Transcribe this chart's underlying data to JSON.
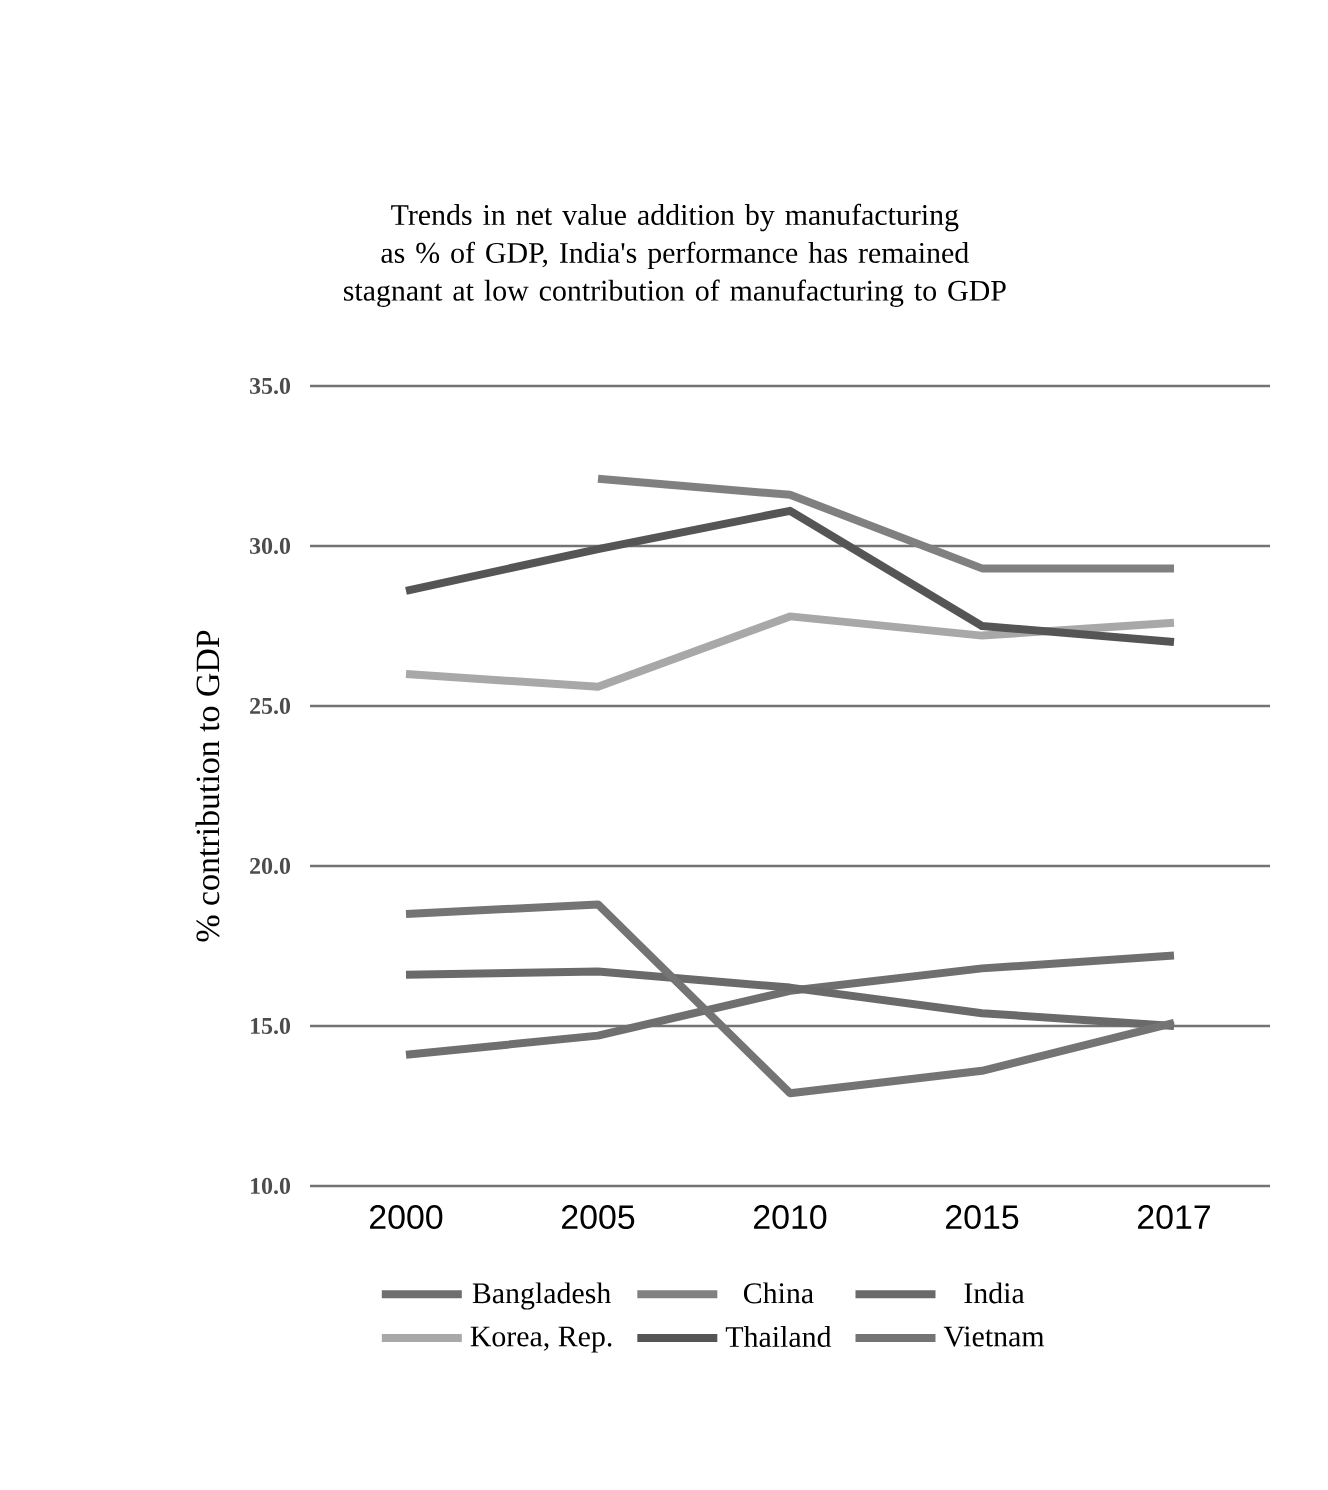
{
  "chart_data": {
    "type": "line",
    "title": "Trends in net value addition by manufacturing as % of GDP,  India's performance has remained stagnant at low contribution of manufacturing to GDP",
    "ylabel": "% contribution to GDP",
    "categories": [
      "2000",
      "2005",
      "2010",
      "2015",
      "2017"
    ],
    "ylim": [
      10,
      35
    ],
    "yticks": [
      {
        "value": 10,
        "label": "10.0"
      },
      {
        "value": 15,
        "label": "15.0"
      },
      {
        "value": 20,
        "label": "20.0"
      },
      {
        "value": 25,
        "label": "25.0"
      },
      {
        "value": 30,
        "label": "30.0"
      },
      {
        "value": 35,
        "label": "35.0"
      }
    ],
    "grid": "y",
    "legend": "bottom",
    "line_style": "solid",
    "marker": "none",
    "series": [
      {
        "name": "Bangladesh",
        "color": "#6f6f6f",
        "values": [
          14.1,
          14.7,
          16.1,
          16.8,
          17.2
        ]
      },
      {
        "name": "China",
        "color": "#808080",
        "values": [
          null,
          32.1,
          31.6,
          29.3,
          29.3
        ]
      },
      {
        "name": "India",
        "color": "#6a6a6a",
        "values": [
          16.6,
          16.7,
          16.2,
          15.4,
          15.0
        ]
      },
      {
        "name": "Korea, Rep.",
        "color": "#a8a8a8",
        "values": [
          26.0,
          25.6,
          27.8,
          27.2,
          27.6
        ]
      },
      {
        "name": "Thailand",
        "color": "#555555",
        "values": [
          28.6,
          29.9,
          31.1,
          27.5,
          27.0
        ]
      },
      {
        "name": "Vietnam",
        "color": "#747474",
        "values": [
          18.5,
          18.8,
          12.9,
          13.6,
          15.1
        ]
      }
    ]
  }
}
